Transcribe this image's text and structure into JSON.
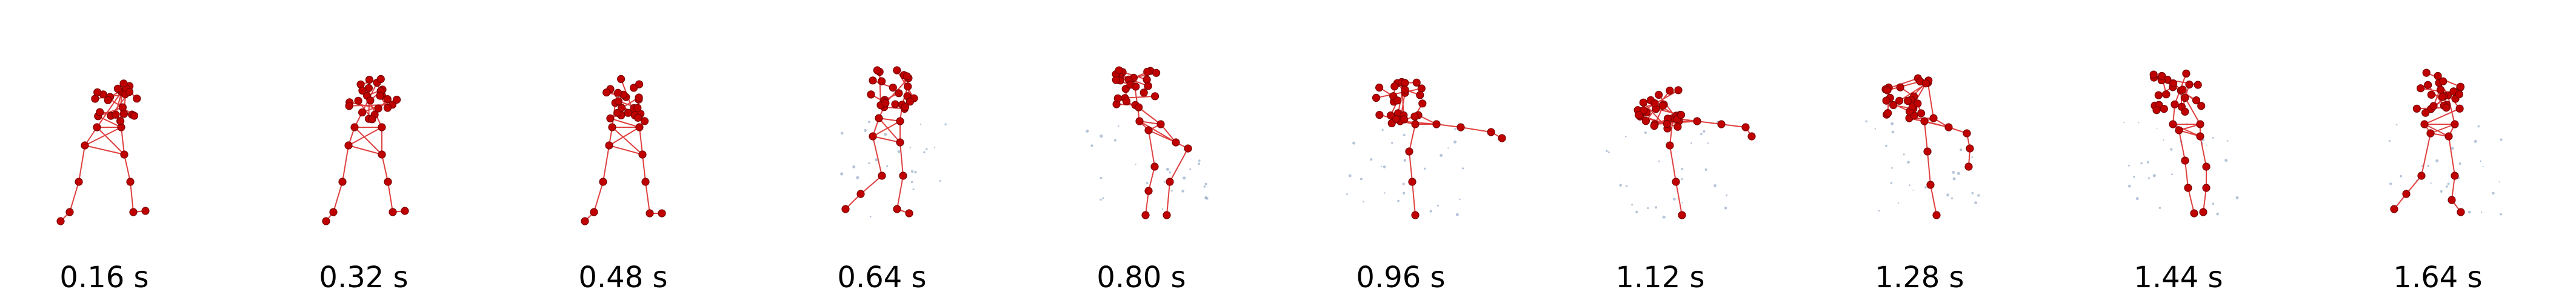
{
  "figure": {
    "frames": [
      {
        "label": "0.16 s"
      },
      {
        "label": "0.32 s"
      },
      {
        "label": "0.48 s"
      },
      {
        "label": "0.64 s"
      },
      {
        "label": "0.80 s"
      },
      {
        "label": "0.96 s"
      },
      {
        "label": "1.12 s"
      },
      {
        "label": "1.28 s"
      },
      {
        "label": "1.44 s"
      },
      {
        "label": "1.64 s"
      }
    ]
  },
  "colors": {
    "joint": "#c00000",
    "joint_edge": "#7a0000",
    "bone": "#e04040",
    "trace": "#5c7faa",
    "label": "#000000"
  }
}
